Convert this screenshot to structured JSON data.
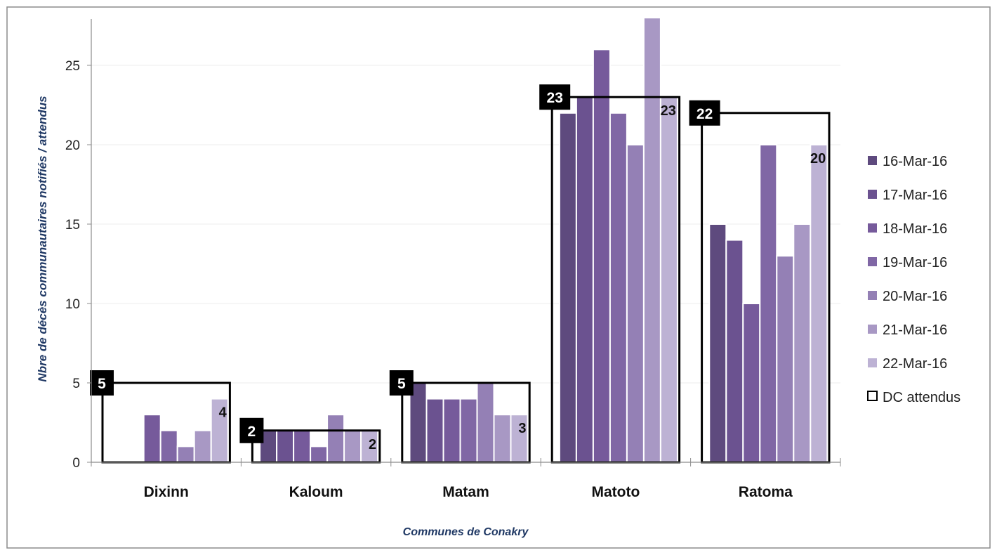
{
  "chart_data": {
    "type": "bar",
    "title": "",
    "xlabel": "Communes de Conakry",
    "ylabel": "Nbre de décès communautaires notifiés / attendus",
    "ylim": [
      0,
      28
    ],
    "yticks": [
      "0",
      "5",
      "10",
      "15",
      "20",
      "25"
    ],
    "grid": true,
    "legend_position": "right",
    "categories": [
      "Dixinn",
      "Kaloum",
      "Matam",
      "Matoto",
      "Ratoma"
    ],
    "series": [
      {
        "name": "16-Mar-16",
        "color": "#5e4a7e",
        "values": [
          0,
          2,
          5,
          22,
          15
        ]
      },
      {
        "name": "17-Mar-16",
        "color": "#6b5290",
        "values": [
          0,
          2,
          4,
          23,
          14
        ]
      },
      {
        "name": "18-Mar-16",
        "color": "#765a9b",
        "values": [
          3,
          2,
          4,
          26,
          10
        ]
      },
      {
        "name": "19-Mar-16",
        "color": "#8067a5",
        "values": [
          2,
          1,
          4,
          22,
          20
        ]
      },
      {
        "name": "20-Mar-16",
        "color": "#9480b5",
        "values": [
          1,
          3,
          5,
          20,
          13
        ]
      },
      {
        "name": "21-Mar-16",
        "color": "#a898c4",
        "values": [
          2,
          2,
          3,
          28,
          15
        ]
      },
      {
        "name": "22-Mar-16",
        "color": "#bdb2d4",
        "values": [
          4,
          2,
          3,
          23,
          20
        ]
      }
    ],
    "expected": {
      "name": "DC attendus",
      "values": [
        5,
        2,
        5,
        23,
        22
      ],
      "labels": [
        "5",
        "2",
        "5",
        "23",
        "22"
      ]
    },
    "last_bar_labels": [
      "4",
      "2",
      "3",
      "23",
      "20"
    ]
  }
}
